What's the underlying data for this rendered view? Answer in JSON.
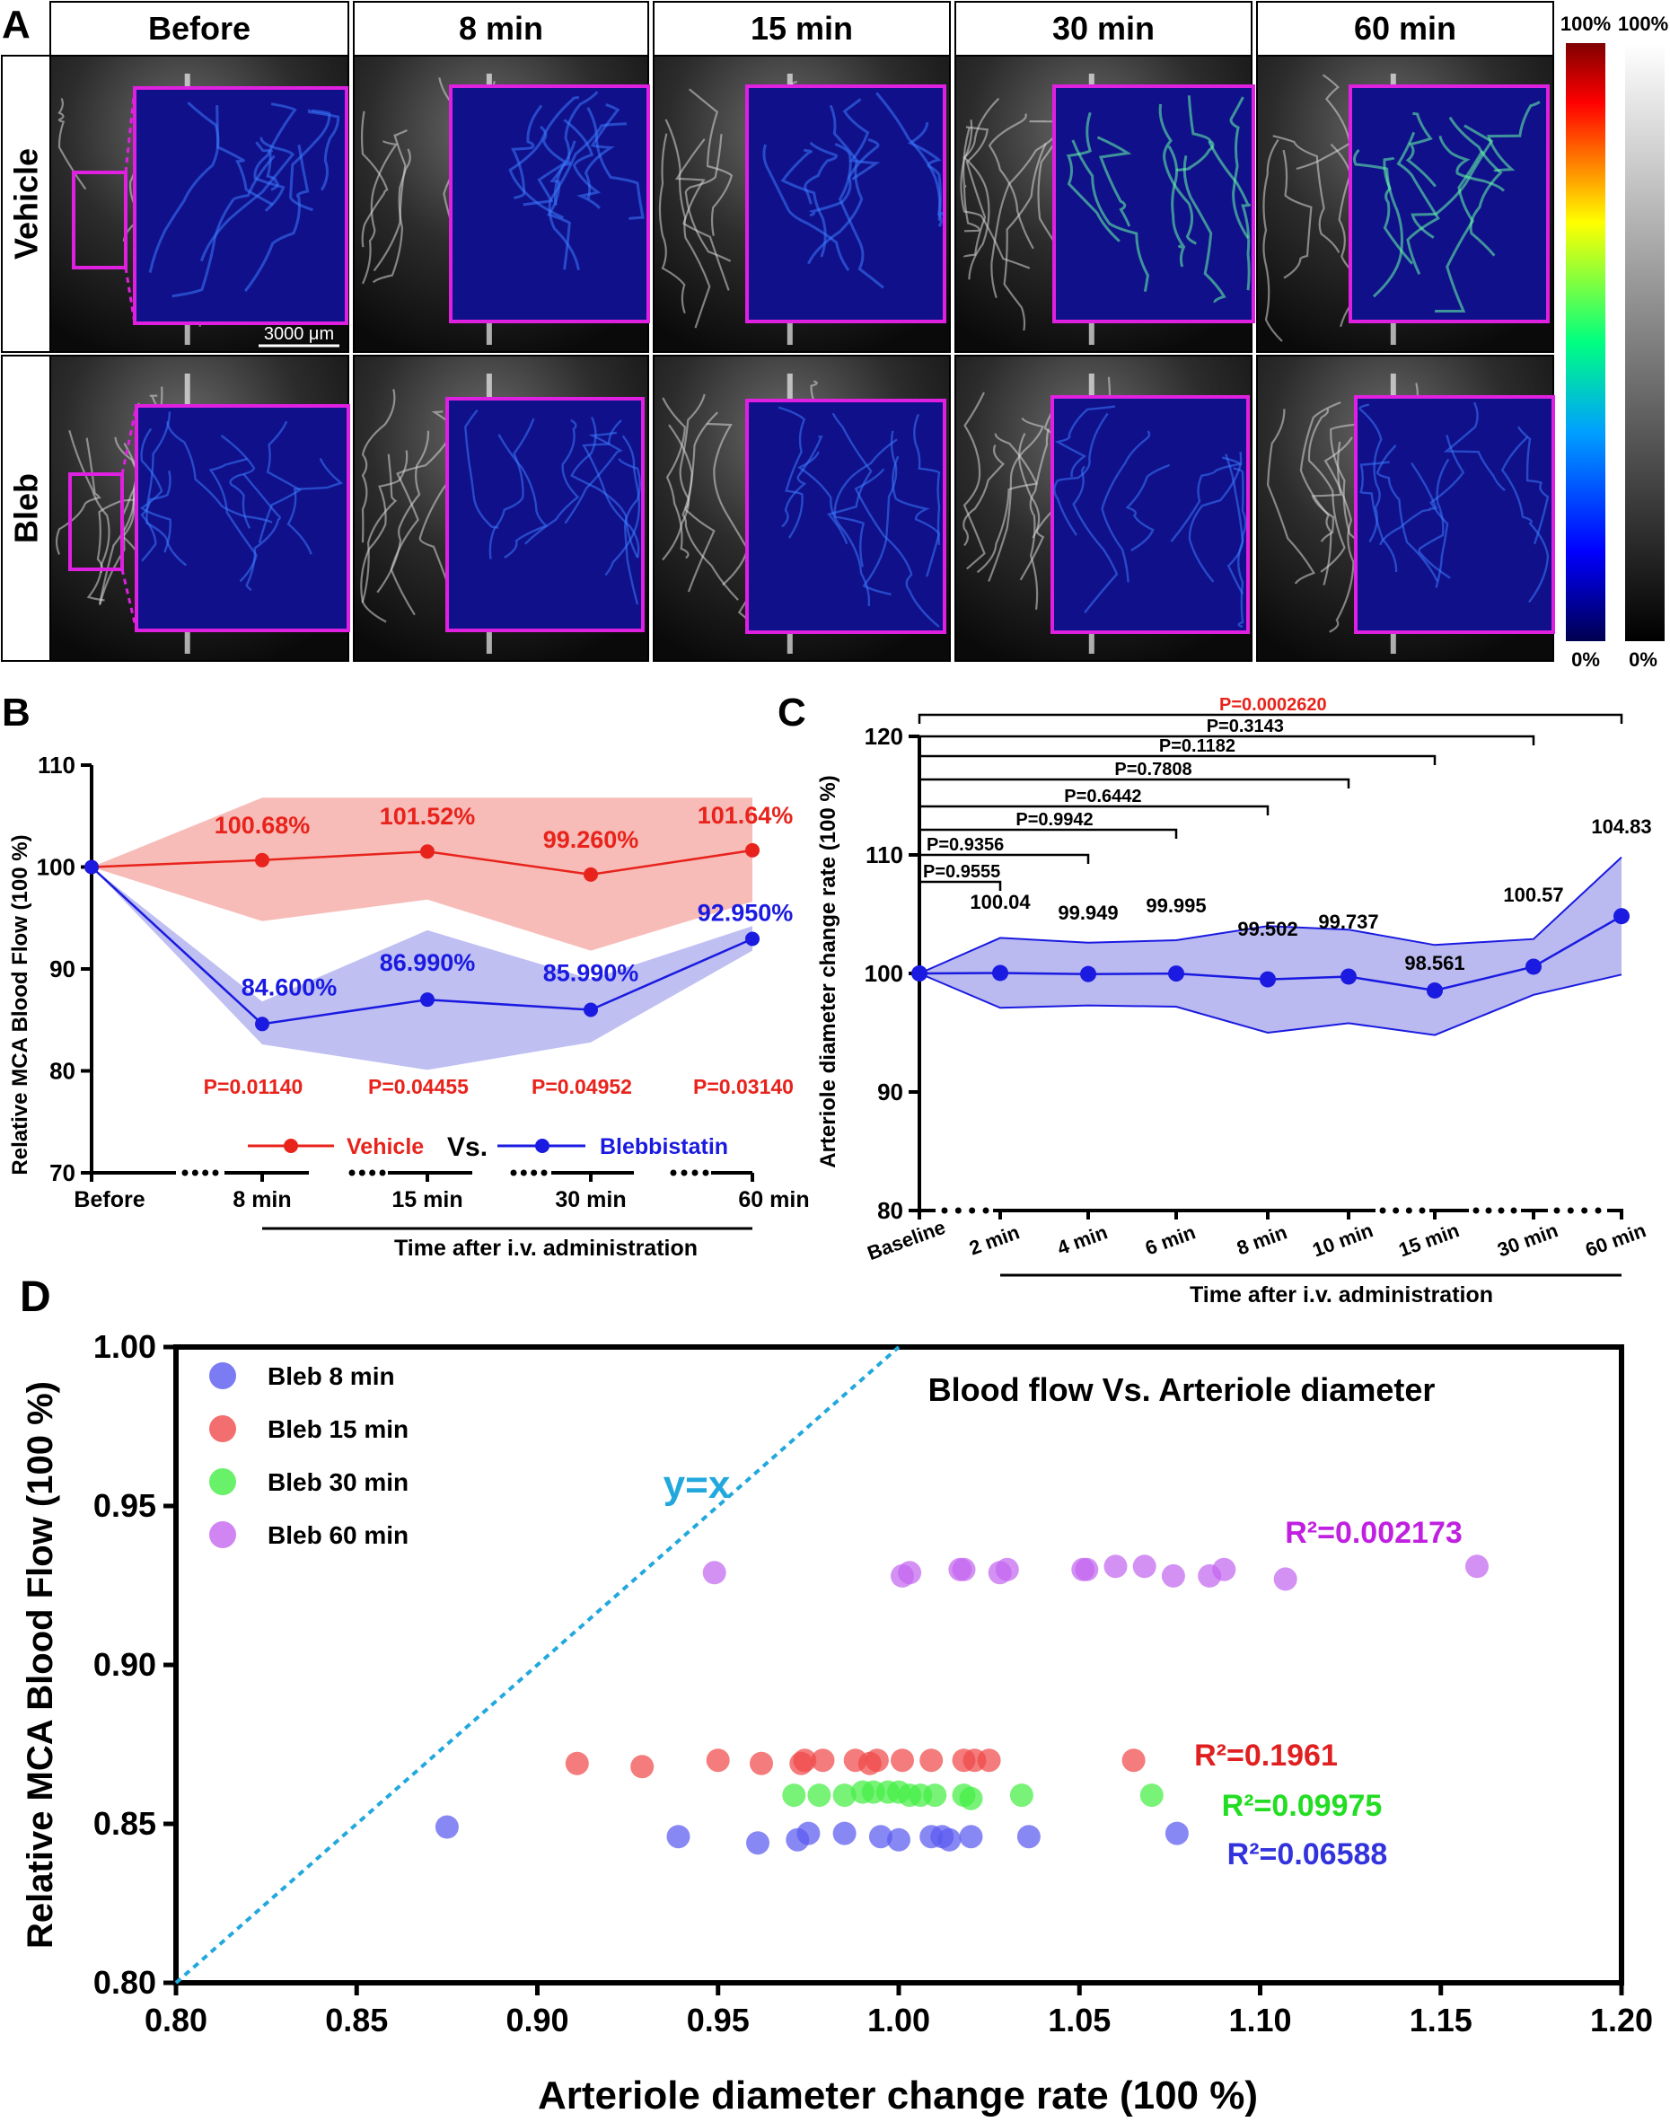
{
  "panel_labels": {
    "a": "A",
    "b": "B",
    "c": "C",
    "d": "D"
  },
  "panel_a": {
    "columns": [
      "Before",
      "8 min",
      "15 min",
      "30 min",
      "60 min"
    ],
    "rows": [
      "Vehicle",
      "Bleb"
    ],
    "scale_bar": "3000 μm",
    "colorbar_color": {
      "top": "100%",
      "bottom": "0%"
    },
    "colorbar_gray": {
      "top": "100%",
      "bottom": "0%"
    },
    "colors": {
      "inset_border": "#e020e0",
      "inset_bg": "#10108a"
    }
  },
  "chart_data": [
    {
      "id": "B",
      "type": "line",
      "categories": [
        "Before",
        "8 min",
        "15 min",
        "30 min",
        "60 min"
      ],
      "ylabel": "Relative MCA Blood Flow (100 %)",
      "xlabel": "Time after i.v. administration",
      "ylim": [
        70,
        110
      ],
      "yticks": [
        70,
        80,
        90,
        100,
        110
      ],
      "legend": {
        "vehicle": "Vehicle",
        "vs": "Vs.",
        "bleb": "Blebbistatin"
      },
      "series": [
        {
          "name": "Vehicle",
          "color": "#e8231c",
          "band": "#f4a6a0",
          "values": [
            100,
            100.68,
            101.52,
            99.26,
            101.64
          ],
          "upper": [
            100,
            106.8,
            106.8,
            106.8,
            106.8
          ],
          "lower": [
            100,
            94.7,
            96.8,
            91.8,
            96.6
          ],
          "labels": [
            "",
            "100.68%",
            "101.52%",
            "99.260%",
            "101.64%"
          ]
        },
        {
          "name": "Blebbistatin",
          "color": "#1a1ae0",
          "band": "#a9a9ee",
          "values": [
            100,
            84.6,
            86.99,
            85.99,
            92.95
          ],
          "upper": [
            100,
            86.8,
            93.8,
            89.0,
            94.2
          ],
          "lower": [
            100,
            82.6,
            80.1,
            82.8,
            91.8
          ],
          "labels": [
            "",
            "84.600%",
            "86.990%",
            "85.990%",
            "92.950%"
          ]
        }
      ],
      "pvalues": [
        "P=0.01140",
        "P=0.04455",
        "P=0.04952",
        "P=0.03140"
      ]
    },
    {
      "id": "C",
      "type": "line",
      "categories": [
        "Baseline",
        "2 min",
        "4 min",
        "6 min",
        "8 min",
        "10 min",
        "15 min",
        "30 min",
        "60 min"
      ],
      "ylabel": "Arteriole diameter change rate (100 %)",
      "xlabel": "Time after i.v. administration",
      "ylim": [
        80,
        120
      ],
      "yticks": [
        80,
        90,
        100,
        110,
        120
      ],
      "series": [
        {
          "name": "",
          "color": "#1a1ae0",
          "band": "#a9a9ee",
          "values": [
            100,
            100.04,
            99.949,
            99.995,
            99.502,
            99.737,
            98.561,
            100.57,
            104.83
          ],
          "upper": [
            100,
            103.0,
            102.6,
            102.8,
            104.0,
            103.7,
            102.4,
            102.9,
            109.8
          ],
          "lower": [
            100,
            97.1,
            97.3,
            97.2,
            95.0,
            95.8,
            94.8,
            98.2,
            99.9
          ],
          "labels": [
            "",
            "100.04",
            "99.949",
            "99.995",
            "99.502",
            "99.737",
            "98.561",
            "100.57",
            "104.83"
          ]
        }
      ],
      "brackets": [
        {
          "to": 1,
          "label": "P=0.9555",
          "red": false
        },
        {
          "to": 2,
          "label": "P=0.9356",
          "red": false
        },
        {
          "to": 3,
          "label": "P=0.9942",
          "red": false
        },
        {
          "to": 4,
          "label": "P=0.6442",
          "red": false
        },
        {
          "to": 5,
          "label": "P=0.7808",
          "red": false
        },
        {
          "to": 6,
          "label": "P=0.1182",
          "red": false
        },
        {
          "to": 7,
          "label": "P=0.3143",
          "red": false
        },
        {
          "to": 8,
          "label": "P=0.0002620",
          "red": true
        }
      ]
    },
    {
      "id": "D",
      "type": "scatter",
      "title": "Blood flow Vs. Arteriole diameter",
      "xlabel": "Arteriole diameter change rate (100 %)",
      "ylabel": "Relative MCA Blood Flow (100 %)",
      "xlim": [
        0.8,
        1.2
      ],
      "ylim": [
        0.8,
        1.0
      ],
      "xticks": [
        "0.80",
        "0.85",
        "0.90",
        "0.95",
        "1.00",
        "1.05",
        "1.10",
        "1.15",
        "1.20"
      ],
      "yticks": [
        "0.80",
        "0.85",
        "0.90",
        "0.95",
        "1.00"
      ],
      "identity_label": "y=x",
      "series": [
        {
          "name": "Bleb 8 min",
          "color": "#5a5af0",
          "r2": "R²=0.06588",
          "r2_color": "#3333dd",
          "points": [
            [
              0.875,
              0.849
            ],
            [
              0.939,
              0.846
            ],
            [
              0.961,
              0.844
            ],
            [
              0.972,
              0.845
            ],
            [
              0.975,
              0.847
            ],
            [
              0.985,
              0.847
            ],
            [
              0.995,
              0.846
            ],
            [
              1.0,
              0.845
            ],
            [
              1.009,
              0.846
            ],
            [
              1.012,
              0.846
            ],
            [
              1.014,
              0.845
            ],
            [
              1.02,
              0.846
            ],
            [
              1.036,
              0.846
            ],
            [
              1.077,
              0.847
            ]
          ]
        },
        {
          "name": "Bleb 15 min",
          "color": "#f04a4a",
          "r2": "R²=0.1961",
          "r2_color": "#e02020",
          "points": [
            [
              0.911,
              0.869
            ],
            [
              0.929,
              0.868
            ],
            [
              0.95,
              0.87
            ],
            [
              0.962,
              0.869
            ],
            [
              0.973,
              0.869
            ],
            [
              0.974,
              0.87
            ],
            [
              0.979,
              0.87
            ],
            [
              0.988,
              0.87
            ],
            [
              0.992,
              0.869
            ],
            [
              0.994,
              0.87
            ],
            [
              1.001,
              0.87
            ],
            [
              1.009,
              0.87
            ],
            [
              1.018,
              0.87
            ],
            [
              1.021,
              0.87
            ],
            [
              1.025,
              0.87
            ],
            [
              1.065,
              0.87
            ]
          ]
        },
        {
          "name": "Bleb 30 min",
          "color": "#44ee44",
          "r2": "R²=0.09975",
          "r2_color": "#22dd22",
          "points": [
            [
              0.971,
              0.859
            ],
            [
              0.978,
              0.859
            ],
            [
              0.985,
              0.859
            ],
            [
              0.99,
              0.86
            ],
            [
              0.993,
              0.86
            ],
            [
              0.997,
              0.86
            ],
            [
              1.0,
              0.86
            ],
            [
              1.003,
              0.859
            ],
            [
              1.006,
              0.859
            ],
            [
              1.01,
              0.859
            ],
            [
              1.018,
              0.859
            ],
            [
              1.02,
              0.858
            ],
            [
              1.034,
              0.859
            ],
            [
              1.07,
              0.859
            ]
          ]
        },
        {
          "name": "Bleb 60 min",
          "color": "#c466f0",
          "r2": "R²=0.002173",
          "r2_color": "#c020e0",
          "points": [
            [
              0.949,
              0.929
            ],
            [
              1.001,
              0.928
            ],
            [
              1.003,
              0.929
            ],
            [
              1.017,
              0.93
            ],
            [
              1.018,
              0.93
            ],
            [
              1.028,
              0.929
            ],
            [
              1.03,
              0.93
            ],
            [
              1.051,
              0.93
            ],
            [
              1.052,
              0.93
            ],
            [
              1.06,
              0.931
            ],
            [
              1.068,
              0.931
            ],
            [
              1.076,
              0.928
            ],
            [
              1.086,
              0.928
            ],
            [
              1.09,
              0.93
            ],
            [
              1.107,
              0.927
            ],
            [
              1.16,
              0.931
            ]
          ]
        }
      ]
    }
  ]
}
